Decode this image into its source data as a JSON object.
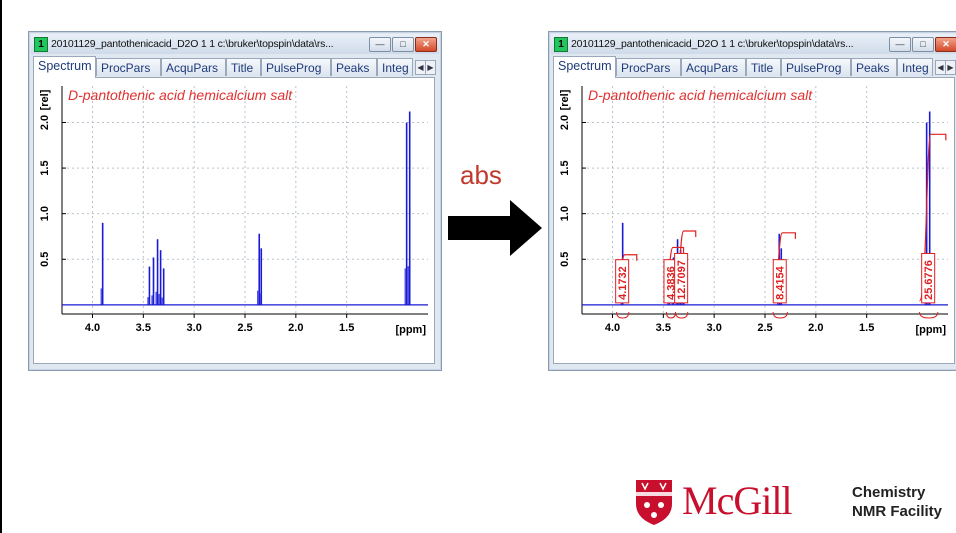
{
  "step_label": "abs",
  "windows": [
    {
      "number": "1",
      "title": "20101129_pantothenicacid_D2O  1  1   c:\\bruker\\topspin\\data\\rs...",
      "tabs": [
        "Spectrum",
        "ProcPars",
        "AcquPars",
        "Title",
        "PulseProg",
        "Peaks",
        "Integ"
      ],
      "active_tab": "Spectrum",
      "window_buttons": [
        "minimize",
        "maximize",
        "close"
      ],
      "spectrum": {
        "sample_label": "D-pantothenic acid hemicalcium salt",
        "y_axis_label": "[rel]",
        "x_axis_label": "[ppm]",
        "x_ticks": [
          "4.0",
          "3.5",
          "3.0",
          "2.5",
          "2.0",
          "1.5"
        ],
        "y_ticks": [
          "0.5",
          "1.0",
          "1.5",
          "2.0"
        ],
        "integrals": []
      }
    },
    {
      "number": "1",
      "title": "20101129_pantothenicacid_D2O  1  1   c:\\bruker\\topspin\\data\\rs...",
      "tabs": [
        "Spectrum",
        "ProcPars",
        "AcquPars",
        "Title",
        "PulseProg",
        "Peaks",
        "Integ"
      ],
      "active_tab": "Spectrum",
      "window_buttons": [
        "minimize",
        "maximize",
        "close"
      ],
      "spectrum": {
        "sample_label": "D-pantothenic acid hemicalcium salt",
        "y_axis_label": "[rel]",
        "x_axis_label": "[ppm]",
        "x_ticks": [
          "4.0",
          "3.5",
          "3.0",
          "2.5",
          "2.0",
          "1.5"
        ],
        "y_ticks": [
          "0.5",
          "1.0",
          "1.5",
          "2.0"
        ],
        "integrals": [
          "4.1732",
          "4.3836",
          "12.7097",
          "8.4154",
          "25.6776"
        ]
      }
    }
  ],
  "chart_data": [
    {
      "type": "line",
      "title": "D-pantothenic acid hemicalcium salt",
      "xlabel": "[ppm]",
      "ylabel": "[rel]",
      "xlim": [
        4.3,
        0.7
      ],
      "ylim": [
        -0.1,
        2.4
      ],
      "x_reversed": true,
      "peaks": [
        {
          "ppm": 3.9,
          "height": 0.9
        },
        {
          "ppm": 3.44,
          "height": 0.42
        },
        {
          "ppm": 3.4,
          "height": 0.52
        },
        {
          "ppm": 3.36,
          "height": 0.72
        },
        {
          "ppm": 3.33,
          "height": 0.6
        },
        {
          "ppm": 3.3,
          "height": 0.4
        },
        {
          "ppm": 2.36,
          "height": 0.78
        },
        {
          "ppm": 2.34,
          "height": 0.62
        },
        {
          "ppm": 0.91,
          "height": 2.0
        },
        {
          "ppm": 0.88,
          "height": 2.12
        }
      ]
    },
    {
      "type": "line",
      "title": "D-pantothenic acid hemicalcium salt",
      "xlabel": "[ppm]",
      "ylabel": "[rel]",
      "xlim": [
        4.3,
        0.7
      ],
      "ylim": [
        -0.1,
        2.4
      ],
      "x_reversed": true,
      "peaks": [
        {
          "ppm": 3.9,
          "height": 0.9
        },
        {
          "ppm": 3.44,
          "height": 0.42
        },
        {
          "ppm": 3.4,
          "height": 0.52
        },
        {
          "ppm": 3.36,
          "height": 0.72
        },
        {
          "ppm": 3.33,
          "height": 0.6
        },
        {
          "ppm": 3.3,
          "height": 0.4
        },
        {
          "ppm": 2.36,
          "height": 0.78
        },
        {
          "ppm": 2.34,
          "height": 0.62
        },
        {
          "ppm": 0.91,
          "height": 2.0
        },
        {
          "ppm": 0.88,
          "height": 2.12
        }
      ],
      "integrals": [
        {
          "label": "4.1732",
          "from": 3.96,
          "to": 3.84
        },
        {
          "label": "4.3836",
          "from": 3.47,
          "to": 3.38
        },
        {
          "label": "12.7097",
          "from": 3.38,
          "to": 3.26
        },
        {
          "label": "8.4154",
          "from": 2.42,
          "to": 2.28
        },
        {
          "label": "25.6776",
          "from": 0.98,
          "to": 0.8
        }
      ]
    }
  ],
  "logo": {
    "wordmark": "McGill",
    "facility_line1": "Chemistry",
    "facility_line2": "NMR Facility"
  },
  "colors": {
    "spectrum": "#1a1ad6",
    "sample_label": "#e03030",
    "integral": "#e02020",
    "step_label": "#c0392b",
    "brand": "#c8102e"
  }
}
